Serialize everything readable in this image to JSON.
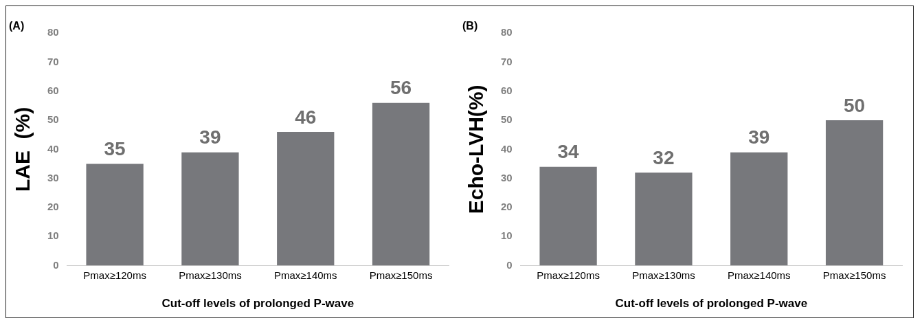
{
  "chart_data": [
    {
      "type": "bar",
      "title": "(A)",
      "xlabel": "Cut-off levels of prolonged P-wave",
      "ylabel": "LAE  (%)",
      "categories": [
        "Pmax≥120ms",
        "Pmax≥130ms",
        "Pmax≥140ms",
        "Pmax≥150ms"
      ],
      "values": [
        35,
        39,
        46,
        56
      ],
      "color": "#77787c",
      "ylim": [
        0,
        80
      ],
      "yticks": [
        0,
        10,
        20,
        30,
        40,
        50,
        60,
        70,
        80
      ],
      "grid": false,
      "data_labels": true
    },
    {
      "type": "bar",
      "title": "(B)",
      "xlabel": "Cut-off levels of prolonged P-wave",
      "ylabel": "Echo-LVH(%)",
      "categories": [
        "Pmax≥120ms",
        "Pmax≥130ms",
        "Pmax≥140ms",
        "Pmax≥150ms"
      ],
      "values": [
        34,
        32,
        39,
        50
      ],
      "color": "#77787c",
      "ylim": [
        0,
        80
      ],
      "yticks": [
        0,
        10,
        20,
        30,
        40,
        50,
        60,
        70,
        80
      ],
      "grid": false,
      "data_labels": true
    }
  ]
}
